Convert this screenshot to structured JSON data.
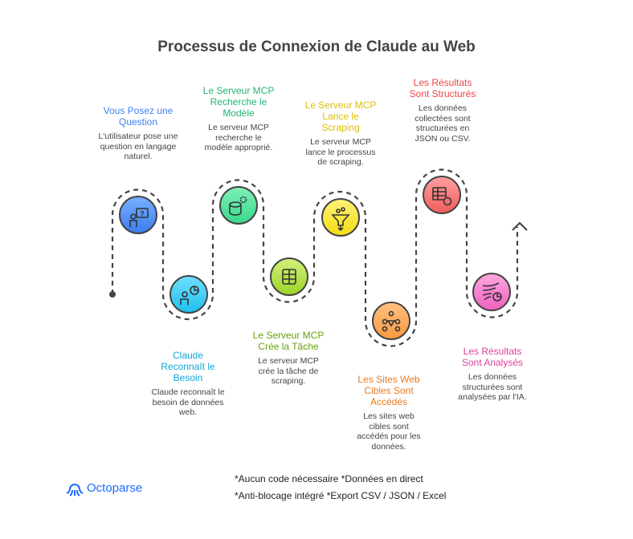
{
  "title": "Processus de Connexion de Claude au Web",
  "steps": [
    {
      "title": "Vous Posez une Question",
      "desc": "L'utilisateur pose une question en langage naturel.",
      "color": "#3b82f6",
      "icon": "user-question-icon"
    },
    {
      "title": "Claude Reconnaît le Besoin",
      "desc": "Claude reconnaît le besoin de données web.",
      "color": "#0ea5d9",
      "icon": "user-chart-icon"
    },
    {
      "title": "Le Serveur MCP Recherche le Modèle",
      "desc": "Le serveur MCP recherche le modèle approprié.",
      "color": "#22b573",
      "icon": "database-gear-icon"
    },
    {
      "title": "Le Serveur MCP Crée la Tâche",
      "desc": "Le serveur MCP crée la tâche de scraping.",
      "color": "#65a30d",
      "icon": "server-task-icon"
    },
    {
      "title": "Le Serveur MCP Lance le Scraping",
      "desc": "Le serveur MCP lance le processus de scraping.",
      "color": "#e0c000",
      "icon": "funnel-icon"
    },
    {
      "title": "Les Sites Web Cibles Sont Accédés",
      "desc": "Les sites web cibles sont accédés pour les données.",
      "color": "#ea7a1a",
      "icon": "network-icon"
    },
    {
      "title": "Les Résultats Sont Structurés",
      "desc": "Les données collectées sont structurées en JSON ou CSV.",
      "color": "#ef4444",
      "icon": "table-refresh-icon"
    },
    {
      "title": "Les Résultats Sont Analysés",
      "desc": "Les données structurées sont analysées par l'IA.",
      "color": "#e0409a",
      "icon": "analysis-chart-icon"
    }
  ],
  "footer": {
    "line1": "*Aucun code nécessaire  *Données en direct",
    "line2": "*Anti-blocage intégré   *Export CSV / JSON / Excel"
  },
  "logo": {
    "text": "Octoparse"
  }
}
